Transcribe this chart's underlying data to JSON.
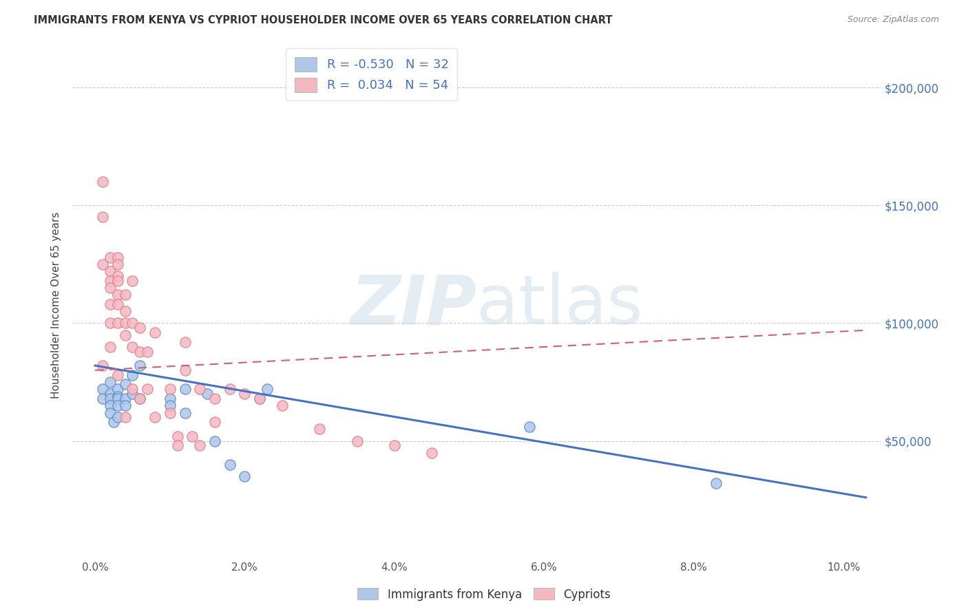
{
  "title": "IMMIGRANTS FROM KENYA VS CYPRIOT HOUSEHOLDER INCOME OVER 65 YEARS CORRELATION CHART",
  "source": "Source: ZipAtlas.com",
  "xlabel_ticks": [
    "0.0%",
    "2.0%",
    "4.0%",
    "6.0%",
    "8.0%",
    "10.0%"
  ],
  "xlabel_vals": [
    0.0,
    0.02,
    0.04,
    0.06,
    0.08,
    0.1
  ],
  "ylabel": "Householder Income Over 65 years",
  "ylabel_ticks": [
    0,
    50000,
    100000,
    150000,
    200000
  ],
  "ylabel_labels": [
    "",
    "$50,000",
    "$100,000",
    "$150,000",
    "$200,000"
  ],
  "xlim": [
    -0.003,
    0.105
  ],
  "ylim": [
    0,
    215000
  ],
  "legend_entries": [
    {
      "label_r": "R = -0.530",
      "label_n": "N = 32",
      "color": "#aec6e8"
    },
    {
      "label_r": "R =  0.034",
      "label_n": "N = 54",
      "color": "#f4b8c1"
    }
  ],
  "kenya_scatter_x": [
    0.001,
    0.001,
    0.002,
    0.002,
    0.002,
    0.002,
    0.002,
    0.0025,
    0.003,
    0.003,
    0.003,
    0.003,
    0.003,
    0.004,
    0.004,
    0.004,
    0.005,
    0.005,
    0.006,
    0.006,
    0.01,
    0.01,
    0.012,
    0.012,
    0.015,
    0.016,
    0.018,
    0.02,
    0.022,
    0.023,
    0.058,
    0.083
  ],
  "kenya_scatter_y": [
    72000,
    68000,
    75000,
    70000,
    68000,
    65000,
    62000,
    58000,
    72000,
    69000,
    68000,
    65000,
    60000,
    74000,
    68000,
    65000,
    78000,
    70000,
    82000,
    68000,
    68000,
    65000,
    72000,
    62000,
    70000,
    50000,
    40000,
    35000,
    68000,
    72000,
    56000,
    32000
  ],
  "kenya_line_x": [
    0.0,
    0.103
  ],
  "kenya_line_y": [
    82000,
    26000
  ],
  "cypriot_scatter_x": [
    0.001,
    0.001,
    0.001,
    0.001,
    0.002,
    0.002,
    0.002,
    0.002,
    0.002,
    0.002,
    0.002,
    0.003,
    0.003,
    0.003,
    0.003,
    0.003,
    0.003,
    0.003,
    0.003,
    0.004,
    0.004,
    0.004,
    0.004,
    0.004,
    0.005,
    0.005,
    0.005,
    0.005,
    0.006,
    0.006,
    0.006,
    0.007,
    0.007,
    0.008,
    0.008,
    0.01,
    0.01,
    0.011,
    0.011,
    0.012,
    0.012,
    0.013,
    0.014,
    0.014,
    0.016,
    0.016,
    0.018,
    0.02,
    0.022,
    0.025,
    0.03,
    0.035,
    0.04,
    0.045
  ],
  "cypriot_scatter_y": [
    160000,
    145000,
    125000,
    82000,
    128000,
    122000,
    118000,
    115000,
    108000,
    100000,
    90000,
    128000,
    125000,
    120000,
    118000,
    112000,
    108000,
    100000,
    78000,
    112000,
    105000,
    100000,
    95000,
    60000,
    118000,
    100000,
    90000,
    72000,
    98000,
    88000,
    68000,
    88000,
    72000,
    96000,
    60000,
    72000,
    62000,
    52000,
    48000,
    92000,
    80000,
    52000,
    72000,
    48000,
    68000,
    58000,
    72000,
    70000,
    68000,
    65000,
    55000,
    50000,
    48000,
    45000
  ],
  "cypriot_line_x": [
    0.0,
    0.103
  ],
  "cypriot_line_y": [
    80000,
    97000
  ],
  "watermark_zip": "ZIP",
  "watermark_atlas": "atlas",
  "kenya_color": "#aec6e8",
  "kenya_edge_color": "#5b8fc9",
  "kenya_line_color": "#4472c4",
  "cypriot_color": "#f4b8c1",
  "cypriot_edge_color": "#e08090",
  "cypriot_line_color": "#d06070",
  "background_color": "#ffffff",
  "grid_color": "#cccccc",
  "text_blue": "#4472c4",
  "title_color": "#333333"
}
